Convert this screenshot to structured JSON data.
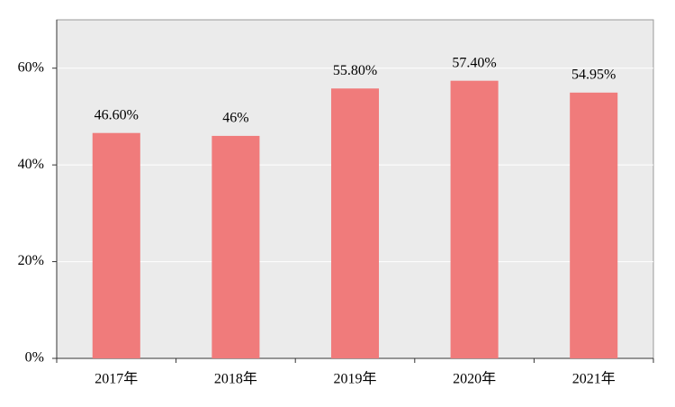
{
  "chart_data": {
    "type": "bar",
    "categories": [
      "2017年",
      "2018年",
      "2019年",
      "2020年",
      "2021年"
    ],
    "values": [
      46.6,
      46,
      55.8,
      57.4,
      54.95
    ],
    "value_labels": [
      "46.60%",
      "46%",
      "55.80%",
      "57.40%",
      "54.95%"
    ],
    "color": "#f07b7b",
    "ylim": [
      0,
      70
    ],
    "yticks": [
      {
        "value": 0,
        "label": "0%"
      },
      {
        "value": 20,
        "label": "20%"
      },
      {
        "value": 40,
        "label": "40%"
      },
      {
        "value": 60,
        "label": "60%"
      }
    ],
    "grid": true
  }
}
